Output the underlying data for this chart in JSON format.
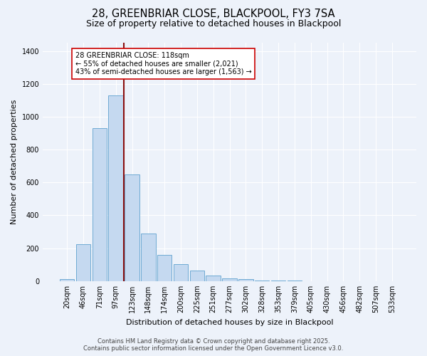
{
  "title_line1": "28, GREENBRIAR CLOSE, BLACKPOOL, FY3 7SA",
  "title_line2": "Size of property relative to detached houses in Blackpool",
  "xlabel": "Distribution of detached houses by size in Blackpool",
  "ylabel": "Number of detached properties",
  "categories": [
    "20sqm",
    "46sqm",
    "71sqm",
    "97sqm",
    "123sqm",
    "148sqm",
    "174sqm",
    "200sqm",
    "225sqm",
    "251sqm",
    "277sqm",
    "302sqm",
    "328sqm",
    "353sqm",
    "379sqm",
    "405sqm",
    "430sqm",
    "456sqm",
    "482sqm",
    "507sqm",
    "533sqm"
  ],
  "values": [
    10,
    225,
    930,
    1130,
    650,
    290,
    160,
    105,
    65,
    35,
    15,
    10,
    5,
    3,
    2,
    1,
    1,
    1,
    1,
    1,
    1
  ],
  "bar_color": "#c5d9f0",
  "bar_edge_color": "#6eaad4",
  "background_color": "#edf2fa",
  "grid_color": "#ffffff",
  "vline_x": 3.5,
  "vline_color": "#8b1010",
  "annotation_text": "28 GREENBRIAR CLOSE: 118sqm\n← 55% of detached houses are smaller (2,021)\n43% of semi-detached houses are larger (1,563) →",
  "annotation_box_facecolor": "#ffffff",
  "annotation_box_edgecolor": "#cc0000",
  "ylim_min": 0,
  "ylim_max": 1450,
  "yticks": [
    0,
    200,
    400,
    600,
    800,
    1000,
    1200,
    1400
  ],
  "footer_line1": "Contains HM Land Registry data © Crown copyright and database right 2025.",
  "footer_line2": "Contains public sector information licensed under the Open Government Licence v3.0.",
  "title_fontsize": 10.5,
  "subtitle_fontsize": 9,
  "ylabel_fontsize": 8,
  "xlabel_fontsize": 8,
  "tick_fontsize": 7,
  "annotation_fontsize": 7,
  "footer_fontsize": 6
}
